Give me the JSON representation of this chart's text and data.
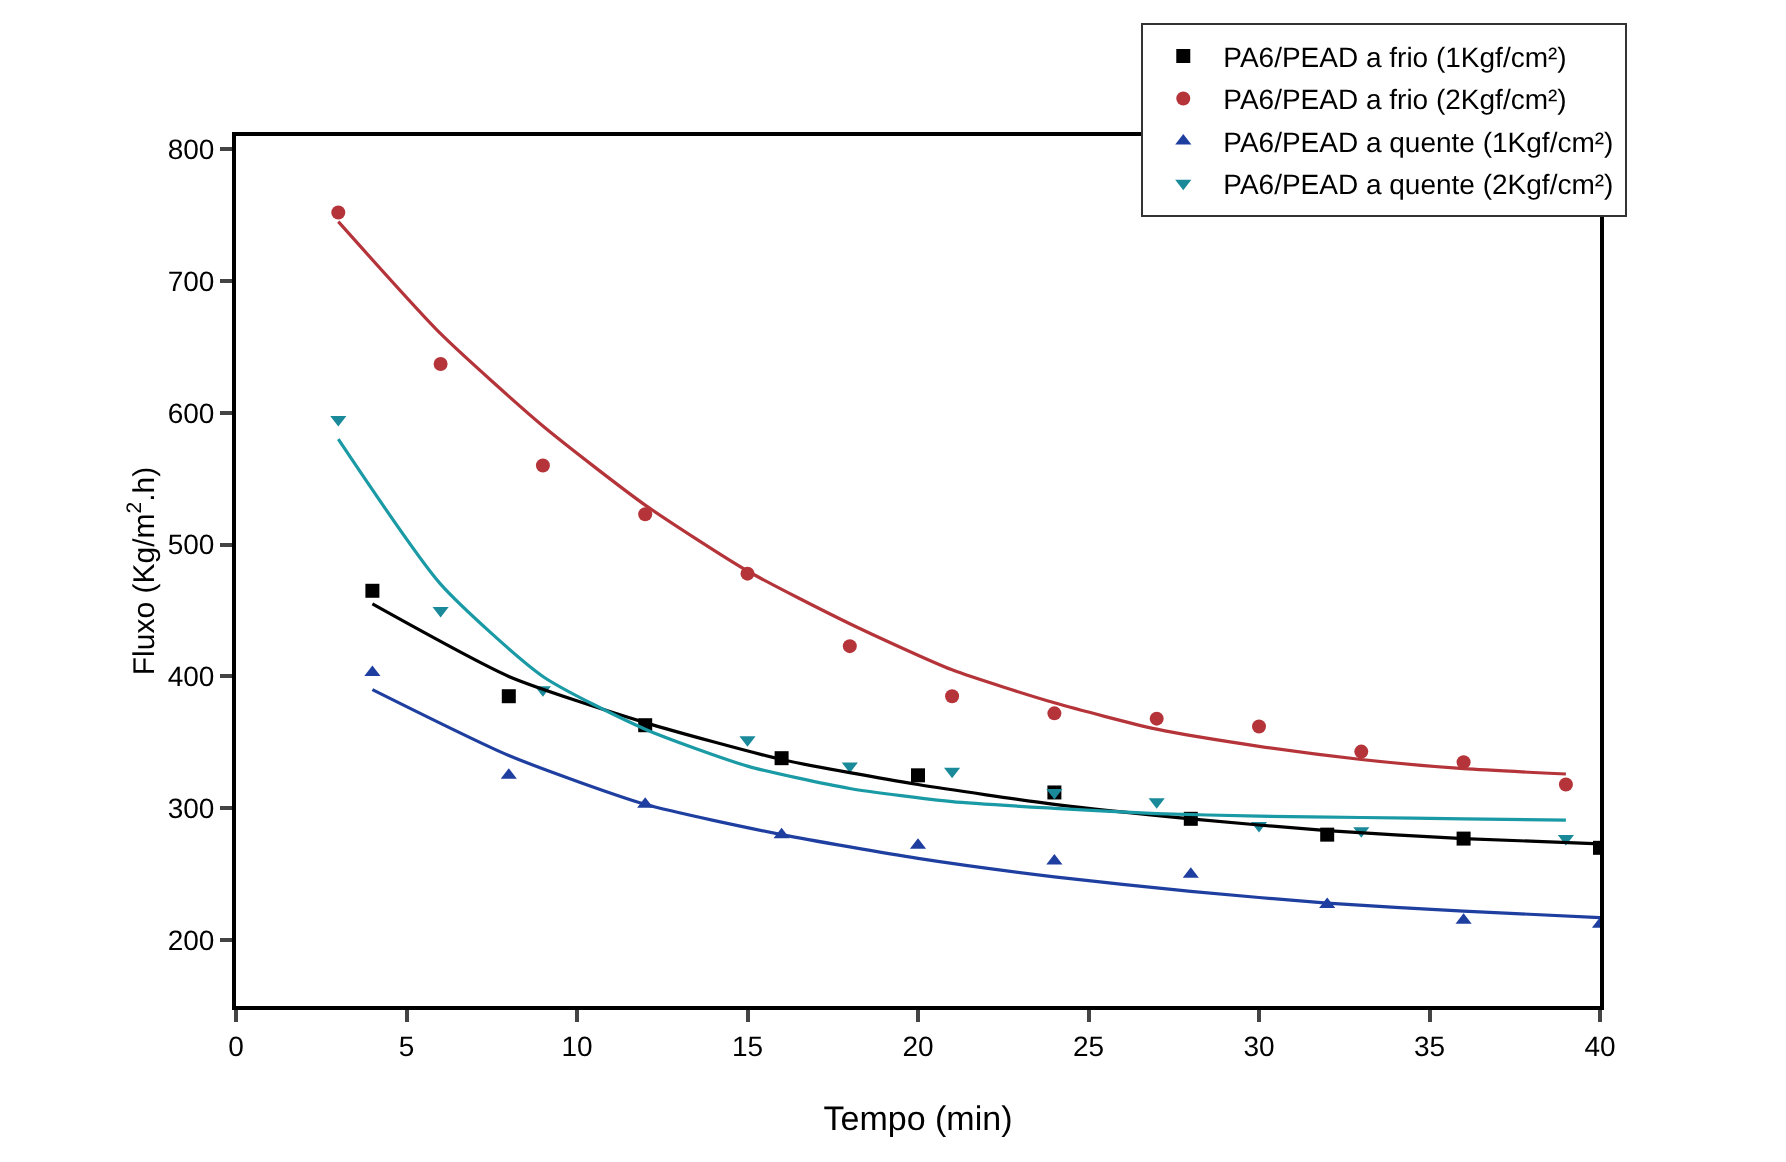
{
  "chart_data": {
    "type": "scatter",
    "xlabel": "Tempo (min)",
    "ylabel": "Fluxo (Kg/m$^{2}$.h)",
    "xlim": [
      0,
      40
    ],
    "xticks": [
      0,
      5,
      10,
      15,
      20,
      25,
      30,
      35,
      40
    ],
    "ylim": [
      150,
      810
    ],
    "yticks": [
      200,
      300,
      400,
      500,
      600,
      700,
      800
    ],
    "grid": false,
    "legend": "top right",
    "series": [
      {
        "name": "PA6/PEAD a frio (1Kgf/cm²)",
        "color": "#000000",
        "marker": "square",
        "x": [
          4,
          8,
          12,
          16,
          20,
          24,
          28,
          32,
          36,
          40
        ],
        "values": [
          465,
          385,
          363,
          338,
          325,
          312,
          292,
          280,
          277,
          270
        ]
      },
      {
        "name": "PA6/PEAD a frio (2Kgf/cm²)",
        "color": "#b5343a",
        "marker": "circle",
        "x": [
          3,
          6,
          9,
          12,
          15,
          18,
          21,
          24,
          27,
          30,
          33,
          36,
          39
        ],
        "values": [
          752,
          637,
          560,
          523,
          478,
          423,
          385,
          372,
          368,
          362,
          343,
          335,
          318
        ]
      },
      {
        "name": "PA6/PEAD a quente (1Kgf/cm²)",
        "color": "#1f3fa0",
        "marker": "triangle",
        "x": [
          4,
          8,
          12,
          16,
          20,
          24,
          28,
          32,
          36,
          40
        ],
        "values": [
          403,
          325,
          303,
          280,
          272,
          260,
          250,
          227,
          215,
          212
        ]
      },
      {
        "name": "PA6/PEAD a quente (2Kgf/cm²)",
        "color": "#1a8a9a",
        "marker": "triangle-down",
        "x": [
          3,
          6,
          9,
          15,
          18,
          21,
          24,
          27,
          30,
          33,
          39
        ],
        "values": [
          595,
          450,
          390,
          352,
          332,
          328,
          312,
          305,
          287,
          283,
          277
        ]
      },
      {
        "type": "line",
        "color": "#000000",
        "marker": "none",
        "line_style": "solid",
        "x": [
          4,
          8,
          12,
          16,
          20,
          24,
          28,
          32,
          36,
          40
        ],
        "values": [
          455,
          400,
          365,
          337,
          318,
          303,
          292,
          283,
          277,
          273
        ]
      },
      {
        "type": "line",
        "color": "#b5343a",
        "marker": "none",
        "line_style": "solid",
        "x": [
          3,
          6,
          9,
          12,
          15,
          18,
          21,
          24,
          27,
          30,
          33,
          36,
          39
        ],
        "values": [
          745,
          660,
          590,
          530,
          480,
          440,
          405,
          380,
          360,
          347,
          337,
          330,
          326
        ]
      },
      {
        "type": "line",
        "color": "#1f3fa0",
        "marker": "none",
        "line_style": "solid",
        "x": [
          4,
          8,
          12,
          16,
          20,
          24,
          28,
          32,
          36,
          40
        ],
        "values": [
          390,
          340,
          303,
          280,
          262,
          248,
          237,
          228,
          222,
          217
        ]
      },
      {
        "type": "line",
        "color": "#1a9aa5",
        "marker": "none",
        "line_style": "solid",
        "x": [
          3,
          6,
          9,
          12,
          15,
          18,
          21,
          24,
          27,
          30,
          33,
          36,
          39
        ],
        "values": [
          580,
          470,
          400,
          360,
          332,
          315,
          305,
          300,
          296,
          294,
          293,
          292,
          291
        ]
      }
    ]
  }
}
